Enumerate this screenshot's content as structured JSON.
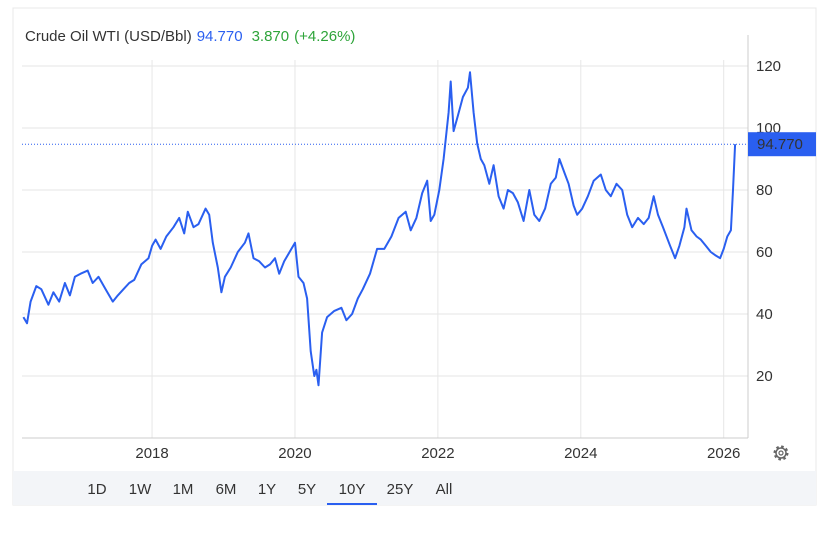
{
  "chart_data": {
    "type": "line",
    "title": "Crude Oil WTI (USD/Bbl)",
    "last": {
      "value": 94.77,
      "label": "94.770"
    },
    "change": {
      "value": 3.87,
      "label": "3.870"
    },
    "change_pct": {
      "value": 4.26,
      "label": "(+4.26%)"
    },
    "xlim": [
      2016.18,
      2026.34
    ],
    "xticks": [
      2018,
      2020,
      2022,
      2024,
      2026
    ],
    "ylim": [
      0,
      130
    ],
    "yticks": [
      20,
      40,
      60,
      80,
      100,
      120
    ],
    "grid": true,
    "ranges": [
      "1D",
      "1W",
      "1M",
      "6M",
      "1Y",
      "5Y",
      "10Y",
      "25Y",
      "All"
    ],
    "selected_range": "10Y",
    "series": [
      {
        "name": "Crude Oil WTI",
        "color": "#2a5ff0",
        "x": [
          2016.2,
          2016.25,
          2016.3,
          2016.38,
          2016.45,
          2016.55,
          2016.62,
          2016.7,
          2016.78,
          2016.85,
          2016.92,
          2017.0,
          2017.1,
          2017.17,
          2017.25,
          2017.35,
          2017.45,
          2017.52,
          2017.6,
          2017.68,
          2017.75,
          2017.85,
          2017.95,
          2018.0,
          2018.05,
          2018.12,
          2018.2,
          2018.3,
          2018.38,
          2018.45,
          2018.5,
          2018.58,
          2018.65,
          2018.75,
          2018.8,
          2018.85,
          2018.92,
          2018.97,
          2019.02,
          2019.1,
          2019.2,
          2019.3,
          2019.35,
          2019.42,
          2019.5,
          2019.58,
          2019.65,
          2019.72,
          2019.78,
          2019.85,
          2019.95,
          2020.0,
          2020.05,
          2020.12,
          2020.17,
          2020.22,
          2020.27,
          2020.3,
          2020.33,
          2020.38,
          2020.45,
          2020.55,
          2020.65,
          2020.72,
          2020.8,
          2020.88,
          2020.95,
          2021.05,
          2021.15,
          2021.25,
          2021.35,
          2021.45,
          2021.55,
          2021.62,
          2021.7,
          2021.78,
          2021.85,
          2021.9,
          2021.95,
          2022.02,
          2022.08,
          2022.15,
          2022.18,
          2022.22,
          2022.28,
          2022.35,
          2022.42,
          2022.45,
          2022.5,
          2022.55,
          2022.6,
          2022.65,
          2022.72,
          2022.78,
          2022.85,
          2022.92,
          2022.98,
          2023.05,
          2023.12,
          2023.2,
          2023.28,
          2023.35,
          2023.42,
          2023.5,
          2023.58,
          2023.65,
          2023.7,
          2023.78,
          2023.83,
          2023.9,
          2023.95,
          2024.02,
          2024.1,
          2024.18,
          2024.28,
          2024.35,
          2024.42,
          2024.5,
          2024.58,
          2024.65,
          2024.72,
          2024.8,
          2024.88,
          2024.95,
          2025.02,
          2025.08,
          2025.15,
          2025.25,
          2025.32,
          2025.38,
          2025.45,
          2025.48,
          2025.55,
          2025.62,
          2025.68,
          2025.75,
          2025.82,
          2025.88,
          2025.95,
          2026.0,
          2026.05,
          2026.1,
          2026.13,
          2026.16
        ],
        "values": [
          39,
          37,
          44,
          49,
          48,
          43,
          47,
          44,
          50,
          46,
          52,
          53,
          54,
          50,
          52,
          48,
          44,
          46,
          48,
          50,
          51,
          56,
          58,
          62,
          64,
          61,
          65,
          68,
          71,
          66,
          73,
          68,
          69,
          74,
          72,
          63,
          55,
          47,
          52,
          55,
          60,
          63,
          66,
          58,
          57,
          55,
          56,
          58,
          53,
          57,
          61,
          63,
          52,
          50,
          45,
          28,
          20,
          22,
          17,
          34,
          39,
          41,
          42,
          38,
          40,
          45,
          48,
          53,
          61,
          61,
          65,
          71,
          73,
          67,
          71,
          79,
          83,
          70,
          72,
          80,
          90,
          105,
          115,
          99,
          104,
          110,
          113,
          118,
          105,
          95,
          90,
          88,
          82,
          88,
          78,
          74,
          80,
          79,
          76,
          70,
          80,
          72,
          70,
          74,
          82,
          84,
          90,
          85,
          82,
          75,
          72,
          74,
          78,
          83,
          85,
          80,
          78,
          82,
          80,
          72,
          68,
          71,
          69,
          71,
          78,
          72,
          68,
          62,
          58,
          62,
          68,
          74,
          67,
          65,
          64,
          62,
          60,
          59,
          58,
          61,
          65,
          67,
          80,
          94.77
        ]
      }
    ]
  }
}
